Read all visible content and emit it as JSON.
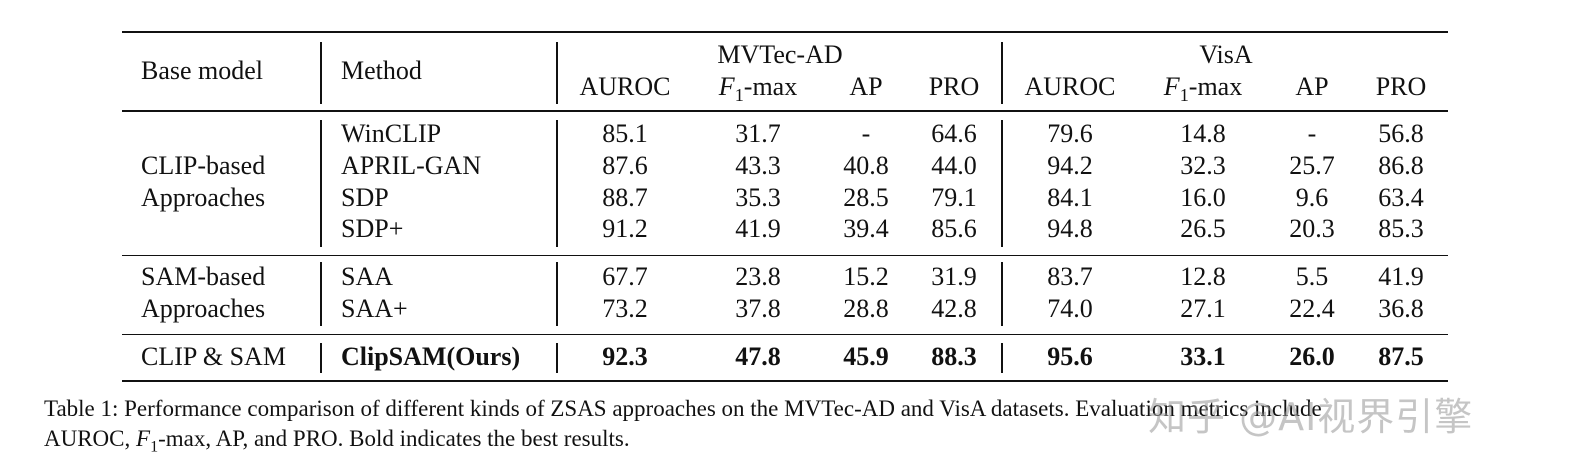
{
  "table": {
    "header": {
      "base_model": "Base model",
      "method": "Method",
      "group_mvtec": "MVTec-AD",
      "group_visa": "VisA",
      "metrics": [
        "AUROC",
        "-max",
        "AP",
        "PRO",
        "AUROC",
        "-max",
        "AP",
        "PRO"
      ]
    },
    "groups": [
      {
        "base_line1": "CLIP-based",
        "base_line2": "Approaches",
        "rows": [
          {
            "method": "WinCLIP",
            "values": [
              "85.1",
              "31.7",
              "-",
              "64.6",
              "79.6",
              "14.8",
              "-",
              "56.8"
            ]
          },
          {
            "method": "APRIL-GAN",
            "values": [
              "87.6",
              "43.3",
              "40.8",
              "44.0",
              "94.2",
              "32.3",
              "25.7",
              "86.8"
            ]
          },
          {
            "method": "SDP",
            "values": [
              "88.7",
              "35.3",
              "28.5",
              "79.1",
              "84.1",
              "16.0",
              "9.6",
              "63.4"
            ]
          },
          {
            "method": "SDP+",
            "values": [
              "91.2",
              "41.9",
              "39.4",
              "85.6",
              "94.8",
              "26.5",
              "20.3",
              "85.3"
            ]
          }
        ]
      },
      {
        "base_line1": "SAM-based",
        "base_line2": "Approaches",
        "rows": [
          {
            "method": "SAA",
            "values": [
              "67.7",
              "23.8",
              "15.2",
              "31.9",
              "83.7",
              "12.8",
              "5.5",
              "41.9"
            ]
          },
          {
            "method": "SAA+",
            "values": [
              "73.2",
              "37.8",
              "28.8",
              "42.8",
              "74.0",
              "27.1",
              "22.4",
              "36.8"
            ]
          }
        ]
      },
      {
        "base_line1": "CLIP & SAM",
        "rows": [
          {
            "method": "ClipSAM(Ours)",
            "values": [
              "92.3",
              "47.8",
              "45.9",
              "88.3",
              "95.6",
              "33.1",
              "26.0",
              "87.5"
            ]
          }
        ]
      }
    ]
  },
  "caption": {
    "line1": "Table 1: Performance comparison of different kinds of ZSAS approaches on the MVTec-AD and VisA datasets. Evaluation metrics include",
    "line2_a": "AUROC, ",
    "line2_b": "-max, AP, and PRO. Bold indicates the best results."
  },
  "watermark": "知乎 @AI视界引擎"
}
